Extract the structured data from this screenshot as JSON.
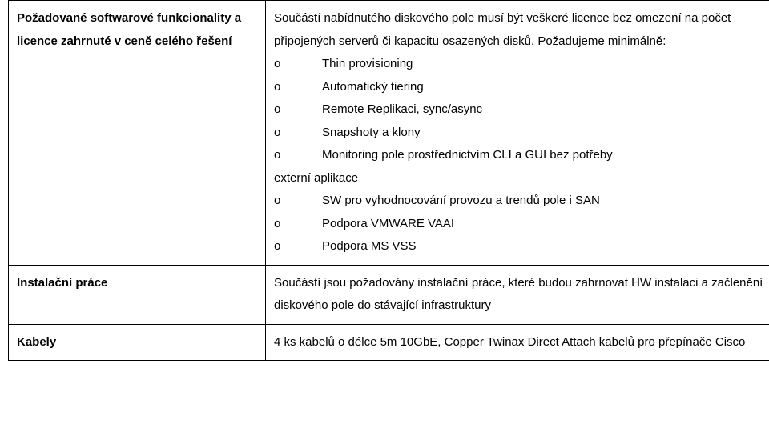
{
  "rows": [
    {
      "left": "Požadované softwarové funkcionality a licence zahrnuté v ceně celého řešení",
      "right": {
        "intro": "Součástí nabídnutého diskového pole musí být veškeré licence bez omezení na počet připojených serverů či kapacitu osazených disků. Požadujeme minimálně:",
        "items": [
          "Thin provisioning",
          "Automatický tiering",
          "Remote Replikaci, sync/async",
          "Snapshoty a klony",
          "Monitoring pole prostřednictvím CLI a GUI bez potřeby"
        ],
        "mid": "externí aplikace",
        "items2": [
          "SW pro vyhodnocování provozu a trendů pole i SAN",
          "Podpora VMWARE VAAI",
          "Podpora MS VSS"
        ]
      }
    },
    {
      "left": "Instalační práce",
      "right_text": "Součástí jsou požadovány instalační práce, které budou zahrnovat HW instalaci a začlenění diskového pole do stávající infrastruktury"
    },
    {
      "left": "Kabely",
      "right_text": "4 ks kabelů o délce 5m 10GbE, Copper Twinax Direct Attach kabelů pro přepínače Cisco"
    }
  ],
  "marker": "o"
}
